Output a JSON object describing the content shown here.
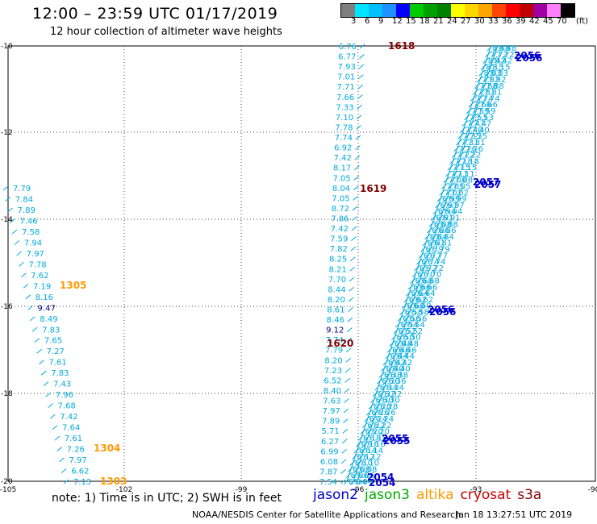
{
  "header": {
    "title": "12:00 – 23:59 UTC 01/17/2019",
    "subtitle": "12 hour collection of altimeter wave heights"
  },
  "color_scale": {
    "unit": "(ft)",
    "labels": [
      "3",
      "6",
      "9",
      "12",
      "15",
      "18",
      "21",
      "24",
      "27",
      "30",
      "33",
      "36",
      "39",
      "42",
      "45",
      "70"
    ],
    "colors": [
      "#7f7f7f",
      "#00e5ff",
      "#00bfff",
      "#1e90ff",
      "#0000ff",
      "#00cc00",
      "#00a000",
      "#008000",
      "#ffff00",
      "#ffd700",
      "#ffa500",
      "#ff4500",
      "#ff0000",
      "#c00000",
      "#a000a0",
      "#ff7fff",
      "#000000"
    ]
  },
  "map": {
    "lon_labels": [
      "-105",
      "-102",
      "-99",
      "-96",
      "-93",
      "-90"
    ],
    "lat_labels": [
      "-10",
      "-12",
      "-14",
      "-16",
      "-18",
      "-20"
    ]
  },
  "tracks": [
    {
      "id": "left",
      "color": "#00aadd",
      "values": [
        "7.79",
        "7.84",
        "7.89",
        "7.46",
        "7.58",
        "7.94",
        "7.97",
        "7.78",
        "7.62",
        "7.19",
        "8.16",
        "9.47",
        "8.49",
        "7.83",
        "7.65",
        "7.27",
        "7.61",
        "7.83",
        "7.43",
        "7.96",
        "7.68",
        "7.42",
        "7.64",
        "7.61",
        "7.26",
        "7.97",
        "6.62",
        "7.13"
      ],
      "highlight": {
        "11": "#000080"
      }
    },
    {
      "id": "middle",
      "color": "#00aadd",
      "values": [
        "6.76",
        "6.77",
        "7.93",
        "7.01",
        "7.71",
        "7.66",
        "7.33",
        "7.10",
        "7.78",
        "7.74",
        "6.92",
        "7.42",
        "8.17",
        "7.05",
        "8.04",
        "7.05",
        "8.72",
        "7.86",
        "7.42",
        "7.59",
        "7.82",
        "8.25",
        "8.21",
        "7.70",
        "8.44",
        "8.20",
        "8.61",
        "8.46",
        "9.12",
        "7.74",
        "7.79",
        "8.20",
        "7.23",
        "6.52",
        "8.40",
        "7.63",
        "7.97",
        "7.89",
        "5.71",
        "6.27",
        "6.99",
        "6.08",
        "7.87",
        "7.54"
      ],
      "highlight": {
        "28": "#000080"
      }
    },
    {
      "id": "right",
      "color": "#00aadd",
      "values": [
        "8.48",
        "7.72",
        "8.42",
        "8.15",
        "8.03",
        "7.92",
        "7.88",
        "7.81",
        "7.74",
        "7.66",
        "7.59",
        "7.53",
        "7.47",
        "7.40",
        "7.35",
        "7.31",
        "7.26",
        "7.22",
        "7.18",
        "7.15",
        "7.11",
        "7.08",
        "7.05",
        "7.02",
        "6.99",
        "6.97",
        "6.94",
        "6.91",
        "6.88",
        "6.86",
        "6.84",
        "6.81",
        "6.79",
        "6.77",
        "6.74",
        "6.72",
        "6.70",
        "6.68",
        "6.66",
        "6.64",
        "6.62",
        "6.60",
        "6.58",
        "6.56",
        "6.54",
        "6.52",
        "6.50",
        "6.48",
        "6.46",
        "6.44",
        "6.42",
        "6.40",
        "6.38",
        "6.36",
        "6.34",
        "6.32",
        "6.30",
        "6.28",
        "6.26",
        "6.24",
        "6.22",
        "6.20",
        "6.18",
        "6.16",
        "6.14",
        "6.12",
        "6.10",
        "6.08",
        "6.06",
        "6.04"
      ]
    }
  ],
  "time_labels": [
    {
      "text": "1618",
      "color": "#800000"
    },
    {
      "text": "1619",
      "color": "#800000"
    },
    {
      "text": "1620",
      "color": "#800000"
    },
    {
      "text": "1305",
      "color": "#ff9900"
    },
    {
      "text": "1304",
      "color": "#ff9900"
    },
    {
      "text": "1303",
      "color": "#ff9900"
    },
    {
      "text": "2056",
      "color": "#0000cc"
    },
    {
      "text": "2057",
      "color": "#0000cc"
    },
    {
      "text": "2056",
      "color": "#0000cc"
    },
    {
      "text": "2055",
      "color": "#0000cc"
    },
    {
      "text": "2054",
      "color": "#0000cc"
    }
  ],
  "legend": {
    "note": "note:  1) Time is in UTC;  2) SWH is in feet",
    "sources": [
      {
        "name": "jason2",
        "color": "#0000cc"
      },
      {
        "name": "jason3",
        "color": "#00aa00"
      },
      {
        "name": "altika",
        "color": "#ff9900"
      },
      {
        "name": "cryosat",
        "color": "#cc0000"
      },
      {
        "name": "s3a",
        "color": "#800000"
      }
    ]
  },
  "footer": {
    "credit": "NOAA/NESDIS Center for Satellite Applications and Research",
    "timestamp": "Jan 18 13:27:51 UTC 2019"
  }
}
